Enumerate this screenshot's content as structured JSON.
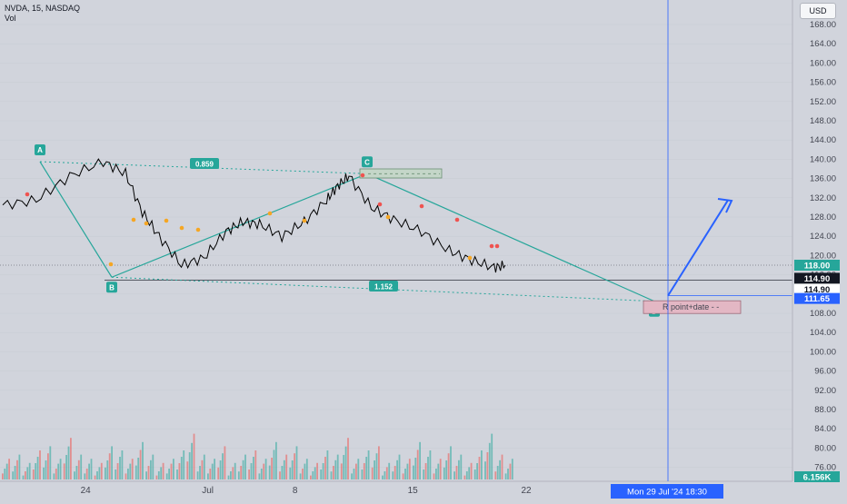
{
  "header": {
    "title": "NVDA, 15, NASDAQ",
    "indicator": "Vol"
  },
  "currency_button": "USD",
  "colors": {
    "background": "#d1d4dc",
    "pattern_line": "#26a69a",
    "up_bar": "#26a69a",
    "down_bar": "#ef5350",
    "projection_arrow": "#2962ff",
    "crosshair": "#2962ff",
    "candle": "#000000"
  },
  "chart_data": {
    "type": "line",
    "title": "NVDA, 15, NASDAQ",
    "ylabel": "USD",
    "ylim": [
      73,
      170
    ],
    "yticks": [
      168,
      164,
      160,
      156,
      152,
      148,
      144,
      140,
      136,
      132,
      128,
      124,
      120,
      116,
      112,
      108,
      104,
      100,
      96,
      92,
      88,
      84,
      80,
      76
    ],
    "y_tick_labels": [
      "168.00",
      "164.00",
      "160.00",
      "156.00",
      "152.00",
      "148.00",
      "144.00",
      "140.00",
      "136.00",
      "132.00",
      "128.00",
      "124.00",
      "120.00",
      "116.00",
      "112.00",
      "108.00",
      "104.00",
      "100.00",
      "96.00",
      "92.00",
      "88.00",
      "84.00",
      "80.00",
      "76.00"
    ],
    "x_tick_labels": [
      "24",
      "Jul",
      "8",
      "15",
      "22"
    ],
    "x": [
      0,
      6,
      12,
      18,
      22,
      25,
      28,
      32,
      36,
      40,
      43,
      46,
      50,
      54,
      58,
      60,
      62,
      66,
      70,
      75,
      80,
      84,
      88,
      90
    ],
    "series": [
      {
        "values": [
          130.5,
          131.5,
          136.5,
          139.5,
          137,
          129,
          124,
          118,
          119.5,
          125,
          127,
          126.5,
          124,
          127,
          131.5,
          134.5,
          136.5,
          130,
          127.5,
          125,
          121,
          119,
          117.5,
          118
        ]
      }
    ],
    "pattern": {
      "points": [
        {
          "label": "A",
          "x": 22,
          "y": 139.5
        },
        {
          "label": "B",
          "x": 34,
          "y": 115.5
        },
        {
          "label": "C",
          "x": 100,
          "y": 137
        },
        {
          "label": "D",
          "x": 150,
          "y": 110.5
        }
      ],
      "ratios": [
        {
          "label": "0.859",
          "x": 42,
          "y": 137
        },
        {
          "label": "1.152",
          "x": 112,
          "y": 112.5
        }
      ],
      "projection_target": 131.5
    },
    "annotation": {
      "text": "R point+date",
      "box_y": [
        108,
        110.5
      ]
    },
    "price_labels": [
      "118.00",
      "114.90",
      "114.90",
      "111.65"
    ],
    "volume_label": "6.156K",
    "crosshair_time": "Mon 29 Jul '24   18:30",
    "volume_bars": [
      3,
      4,
      2,
      5,
      6,
      3,
      8,
      4,
      3,
      2,
      6,
      5,
      3,
      7,
      4,
      2,
      3,
      5,
      9,
      4,
      3,
      6,
      2,
      4,
      5,
      3,
      7,
      4,
      6,
      3,
      2,
      5,
      4,
      8,
      3,
      5,
      6,
      2,
      4,
      3,
      7,
      5,
      3,
      6,
      4,
      2,
      5,
      9,
      4,
      3
    ]
  }
}
